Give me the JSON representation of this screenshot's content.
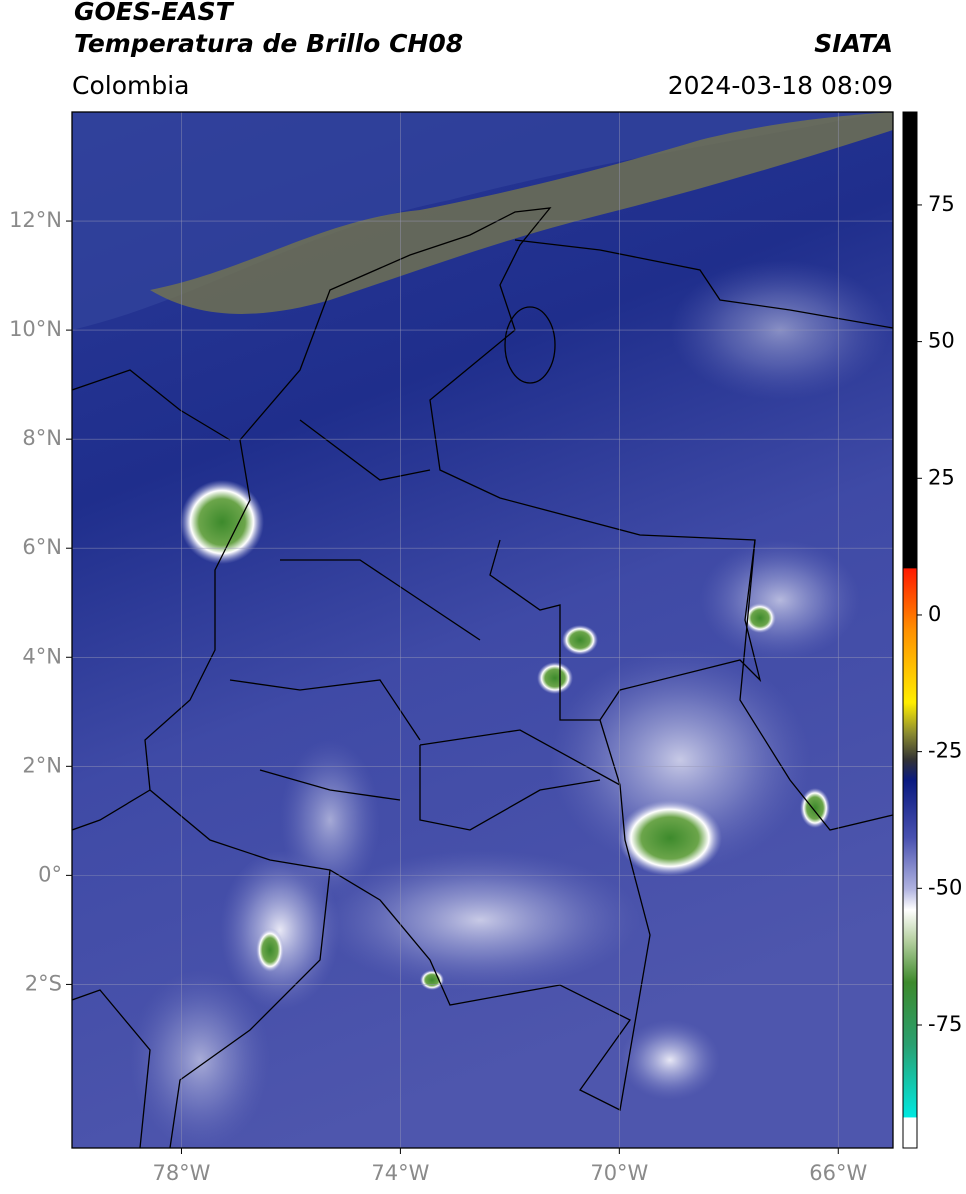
{
  "header": {
    "title": "GOES-EAST",
    "subtitle": "Temperatura de Brillo CH08",
    "source": "SIATA",
    "region": "Colombia",
    "datetime": "2024-03-18 08:09"
  },
  "map": {
    "xlim": [
      -80,
      -65
    ],
    "ylim": [
      -5,
      14
    ],
    "xticks": [
      {
        "value": -78,
        "label": "78°W"
      },
      {
        "value": -74,
        "label": "74°W"
      },
      {
        "value": -70,
        "label": "70°W"
      },
      {
        "value": -66,
        "label": "66°W"
      }
    ],
    "yticks": [
      {
        "value": 12,
        "label": "12°N"
      },
      {
        "value": 10,
        "label": "10°N"
      },
      {
        "value": 8,
        "label": "8°N"
      },
      {
        "value": 6,
        "label": "6°N"
      },
      {
        "value": 4,
        "label": "4°N"
      },
      {
        "value": 2,
        "label": "2°N"
      },
      {
        "value": 0,
        "label": "0°"
      },
      {
        "value": -2,
        "label": "2°S"
      }
    ],
    "grid": true
  },
  "colorbar": {
    "ylim": [
      -97.5,
      92
    ],
    "yticks": [
      75,
      50,
      25,
      0,
      -25,
      -50,
      -75
    ]
  }
}
